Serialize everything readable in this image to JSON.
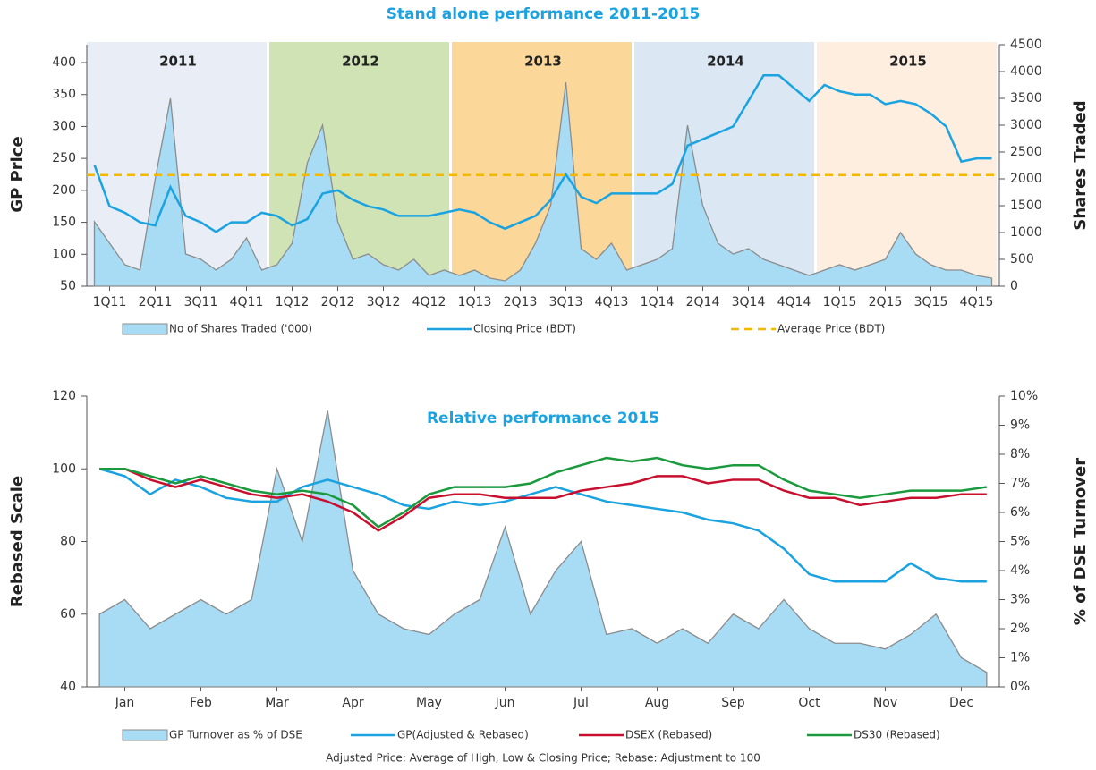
{
  "chart_data": [
    {
      "type": "line",
      "title": "Stand alone performance 2011-2015",
      "ylabel": "GP Price",
      "y2label": "Shares Traded",
      "categories": [
        null,
        "1Q11",
        null,
        null,
        "2Q11",
        null,
        null,
        "3Q11",
        null,
        null,
        "4Q11",
        null,
        null,
        "1Q12",
        null,
        null,
        "2Q12",
        null,
        null,
        "3Q12",
        null,
        null,
        "4Q12",
        null,
        null,
        "1Q13",
        null,
        null,
        "2Q13",
        null,
        null,
        "3Q13",
        null,
        null,
        "4Q13",
        null,
        null,
        "1Q14",
        null,
        null,
        "2Q14",
        null,
        null,
        "3Q14",
        null,
        null,
        "4Q14",
        null,
        null,
        "1Q15",
        null,
        null,
        "2Q15",
        null,
        null,
        "3Q15",
        null,
        null,
        "4Q15",
        null
      ],
      "bands": [
        {
          "label": "2011",
          "color": "#e8edf6"
        },
        {
          "label": "2012",
          "color": "#cfe3b4"
        },
        {
          "label": "2013",
          "color": "#fbd89a"
        },
        {
          "label": "2014",
          "color": "#dbe8f4"
        },
        {
          "label": "2015",
          "color": "#fdeee0"
        }
      ],
      "series": [
        {
          "name": "No of  Shares Traded ('000)",
          "type": "area",
          "axis": "y2",
          "color": "#a8dcf5",
          "edge": "#8c8c8c",
          "values": [
            1200,
            800,
            400,
            300,
            2000,
            3500,
            600,
            500,
            300,
            500,
            900,
            300,
            400,
            800,
            2300,
            3000,
            1200,
            500,
            600,
            400,
            300,
            500,
            200,
            300,
            200,
            300,
            150,
            100,
            300,
            800,
            1500,
            3800,
            700,
            500,
            800,
            300,
            400,
            500,
            700,
            3000,
            1500,
            800,
            600,
            700,
            500,
            400,
            300,
            200,
            300,
            400,
            300,
            400,
            500,
            1000,
            600,
            400,
            300,
            300,
            200,
            150
          ]
        },
        {
          "name": "Closing Price (BDT)",
          "type": "line",
          "color": "#1aa3e0",
          "values": [
            240,
            175,
            165,
            150,
            145,
            205,
            160,
            150,
            135,
            150,
            150,
            165,
            160,
            145,
            155,
            195,
            200,
            185,
            175,
            170,
            160,
            160,
            160,
            165,
            170,
            165,
            150,
            140,
            150,
            160,
            185,
            225,
            190,
            180,
            195,
            195,
            195,
            195,
            210,
            270,
            280,
            290,
            300,
            340,
            380,
            380,
            360,
            340,
            365,
            355,
            350,
            350,
            335,
            340,
            335,
            320,
            300,
            245,
            250,
            250
          ]
        },
        {
          "name": "Average Price (BDT)",
          "type": "hline",
          "color": "#f5b800",
          "value": 224
        }
      ],
      "ylim": [
        50,
        400
      ],
      "yticks": [
        50,
        100,
        150,
        200,
        250,
        300,
        350,
        400
      ],
      "y2lim": [
        0,
        4500
      ],
      "y2ticks": [
        0,
        500,
        1000,
        1500,
        2000,
        2500,
        3000,
        3500,
        4000,
        4500
      ]
    },
    {
      "type": "line",
      "title": "Relative performance 2015",
      "ylabel": "Rebased Scale",
      "y2label": "% of DSE Turnover",
      "categories": [
        null,
        "Jan",
        null,
        null,
        "Feb",
        null,
        null,
        "Mar",
        null,
        null,
        "Apr",
        null,
        null,
        "May",
        null,
        null,
        "Jun",
        null,
        null,
        "Jul",
        null,
        null,
        "Aug",
        null,
        null,
        "Sep",
        null,
        null,
        "Oct",
        null,
        null,
        "Nov",
        null,
        null,
        "Dec",
        null
      ],
      "series": [
        {
          "name": "GP Turnover as % of DSE",
          "type": "area",
          "axis": "y2",
          "color": "#a8dcf5",
          "edge": "#8c8c8c",
          "values": [
            2.5,
            3,
            2,
            2.5,
            3,
            2.5,
            3,
            7.5,
            5,
            9.5,
            4,
            2.5,
            2,
            1.8,
            2.5,
            3,
            5.5,
            2.5,
            4,
            5,
            1.8,
            2,
            1.5,
            2,
            1.5,
            2.5,
            2,
            3,
            2,
            1.5,
            1.5,
            1.3,
            1.8,
            2.5,
            1,
            0.5
          ]
        },
        {
          "name": "GP(Adjusted & Rebased)",
          "type": "line",
          "color": "#1aa3e0",
          "values": [
            100,
            98,
            93,
            97,
            95,
            92,
            91,
            91,
            95,
            97,
            95,
            93,
            90,
            89,
            91,
            90,
            91,
            93,
            95,
            93,
            91,
            90,
            89,
            88,
            86,
            85,
            83,
            78,
            71,
            69,
            69,
            69,
            74,
            70,
            69,
            69
          ]
        },
        {
          "name": "DSEX (Rebased)",
          "type": "line",
          "color": "#c8102e",
          "values": [
            100,
            100,
            97,
            95,
            97,
            95,
            93,
            92,
            93,
            91,
            88,
            83,
            87,
            92,
            93,
            93,
            92,
            92,
            92,
            94,
            95,
            96,
            98,
            98,
            96,
            97,
            97,
            94,
            92,
            92,
            90,
            91,
            92,
            92,
            93,
            93
          ]
        },
        {
          "name": "DS30 (Rebased)",
          "type": "line",
          "color": "#1a9a3c",
          "values": [
            100,
            100,
            98,
            96,
            98,
            96,
            94,
            93,
            94,
            93,
            90,
            84,
            88,
            93,
            95,
            95,
            95,
            96,
            99,
            101,
            103,
            102,
            103,
            101,
            100,
            101,
            101,
            97,
            94,
            93,
            92,
            93,
            94,
            94,
            94,
            95
          ]
        }
      ],
      "ylim": [
        40,
        120
      ],
      "yticks": [
        40,
        60,
        80,
        100,
        120
      ],
      "y2lim": [
        0,
        10
      ],
      "y2ticks": [
        {
          "value": 0,
          "label": "0%"
        },
        {
          "value": 1,
          "label": "1%"
        },
        {
          "value": 2,
          "label": "2%"
        },
        {
          "value": 3,
          "label": "3%"
        },
        {
          "value": 4,
          "label": "4%"
        },
        {
          "value": 5,
          "label": "5%"
        },
        {
          "value": 6,
          "label": "6%"
        },
        {
          "value": 7,
          "label": "7%"
        },
        {
          "value": 8,
          "label": "8%"
        },
        {
          "value": 9,
          "label": "9%"
        },
        {
          "value": 10,
          "label": "10%"
        }
      ],
      "footnote": "Adjusted Price: Average of High, Low & Closing Price; Rebase: Adjustment  to 100"
    }
  ]
}
